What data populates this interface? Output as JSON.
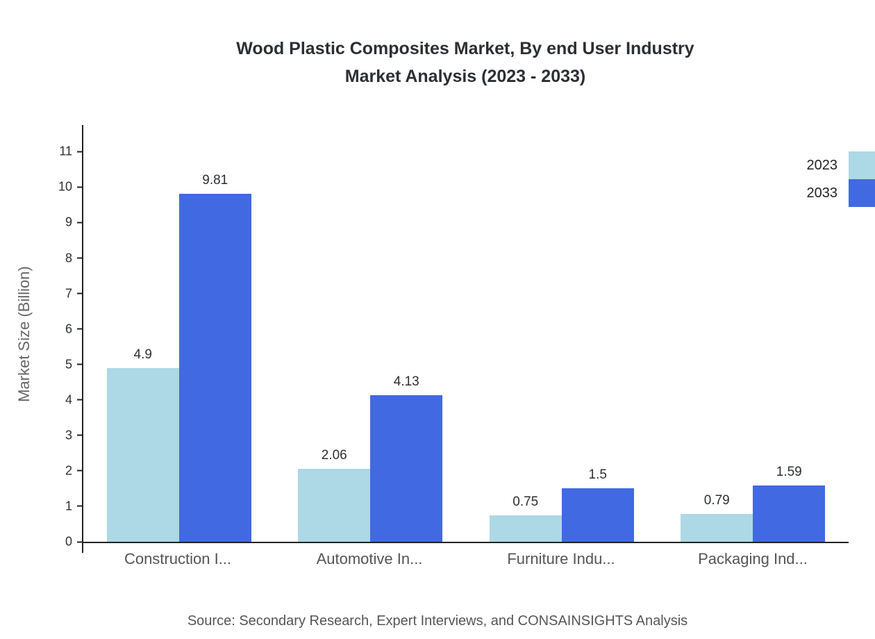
{
  "title": {
    "line1": "Wood Plastic Composites Market, By end User Industry",
    "line2": "Market Analysis (2023 - 2033)"
  },
  "source": "Source: Secondary Research, Expert Interviews, and CONSAINSIGHTS Analysis",
  "chart_data": {
    "type": "bar",
    "title": "Wood Plastic Composites Market, By end User Industry Market Analysis (2023 - 2033)",
    "categories": [
      "Construction I...",
      "Automotive In...",
      "Furniture Indu...",
      "Packaging Ind..."
    ],
    "series": [
      {
        "name": "2023",
        "color": "#ADD8E6",
        "values": [
          4.9,
          2.06,
          0.75,
          0.79
        ]
      },
      {
        "name": "2033",
        "color": "#4169E1",
        "values": [
          9.81,
          4.13,
          1.5,
          1.59
        ]
      }
    ],
    "xlabel": "",
    "ylabel": "Market Size (Billion)",
    "ylim": [
      0,
      11.75
    ],
    "yticks": [
      0,
      1,
      2,
      3,
      4,
      5,
      6,
      7,
      8,
      9,
      10,
      11
    ],
    "grid": false,
    "legend_position": "top-right",
    "axis_color": "#222222",
    "background": "#ffffff"
  }
}
